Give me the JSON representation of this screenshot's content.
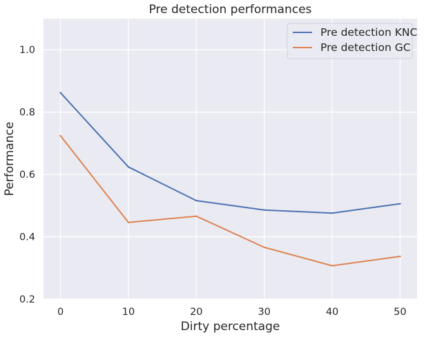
{
  "chart_data": {
    "type": "line",
    "title": "Pre detection performances",
    "xlabel": "Dirty percentage",
    "ylabel": "Performance",
    "x": [
      0,
      10,
      20,
      30,
      40,
      50
    ],
    "xticks": [
      0,
      10,
      20,
      30,
      40,
      50
    ],
    "xlim": [
      -2.5,
      52.5
    ],
    "ylim": [
      0.2,
      1.1
    ],
    "yticks": [
      0.2,
      0.4,
      0.6,
      0.8,
      1.0
    ],
    "ytick_labels": [
      "0.2",
      "0.4",
      "0.6",
      "0.8",
      "1.0"
    ],
    "grid": true,
    "legend_position": "top-right",
    "background_color": "#eaeaf2",
    "series": [
      {
        "name": "Pre detection KNC",
        "color": "#4c72b0",
        "values": [
          0.862,
          0.624,
          0.516,
          0.486,
          0.476,
          0.506
        ]
      },
      {
        "name": "Pre detection GC",
        "color": "#dd8452",
        "values": [
          0.724,
          0.446,
          0.466,
          0.366,
          0.307,
          0.337
        ]
      }
    ]
  }
}
